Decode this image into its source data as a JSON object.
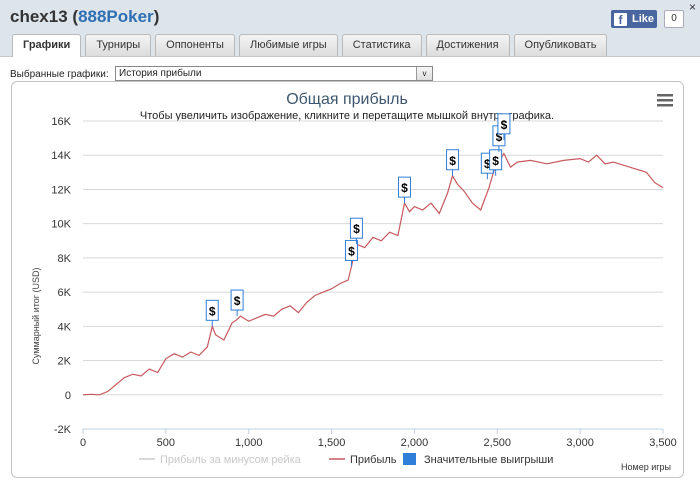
{
  "header": {
    "title_user": "chex13",
    "title_site": "888Poker",
    "close_glyph": "×",
    "like_label": "Like",
    "like_count": "0",
    "fb_icon": "f"
  },
  "tabs": [
    {
      "label": "Графики",
      "active": true
    },
    {
      "label": "Турниры",
      "active": false
    },
    {
      "label": "Оппоненты",
      "active": false
    },
    {
      "label": "Любимые игры",
      "active": false
    },
    {
      "label": "Статистика",
      "active": false
    },
    {
      "label": "Достижения",
      "active": false
    },
    {
      "label": "Опубликовать",
      "active": false
    }
  ],
  "selector": {
    "label": "Выбранные графики:",
    "value": "История прибыли",
    "arrow_glyph": "v"
  },
  "chart_data": {
    "type": "line",
    "title": "Общая прибыль",
    "subtitle": "Чтобы увеличить изображение, кликните и перетащите мышкой внутрь графика.",
    "xlabel": "Номер игры",
    "ylabel": "Суммарный итог (USD)",
    "xlim": [
      0,
      3500
    ],
    "ylim": [
      -2000,
      16000
    ],
    "x_ticks": [
      "0",
      "500",
      "1,000",
      "1,500",
      "2,000",
      "2,500",
      "3,000",
      "3,500"
    ],
    "x_tick_values": [
      0,
      500,
      1000,
      1500,
      2000,
      2500,
      3000,
      3500
    ],
    "y_ticks": [
      "-2K",
      "0",
      "2K",
      "4K",
      "6K",
      "8K",
      "10K",
      "12K",
      "14K",
      "16K"
    ],
    "y_tick_values": [
      -2000,
      0,
      2000,
      4000,
      6000,
      8000,
      10000,
      12000,
      14000,
      16000
    ],
    "grid": true,
    "legend_position": "bottom",
    "menu_icon": "menu-icon",
    "series": [
      {
        "name": "Прибыль за минусом рейка",
        "color": "#cccccc",
        "hidden": true,
        "x": [],
        "y": []
      },
      {
        "name": "Прибыль",
        "color": "#c7595e",
        "hidden": false,
        "x": [
          0,
          50,
          100,
          150,
          200,
          250,
          300,
          350,
          400,
          450,
          500,
          550,
          600,
          650,
          700,
          750,
          780,
          800,
          850,
          900,
          930,
          950,
          1000,
          1050,
          1100,
          1150,
          1200,
          1250,
          1300,
          1350,
          1400,
          1450,
          1500,
          1550,
          1600,
          1620,
          1650,
          1700,
          1750,
          1800,
          1850,
          1900,
          1940,
          1970,
          2000,
          2050,
          2100,
          2150,
          2200,
          2230,
          2260,
          2300,
          2350,
          2400,
          2450,
          2480,
          2510,
          2540,
          2580,
          2620,
          2700,
          2800,
          2900,
          3000,
          3050,
          3100,
          3150,
          3200,
          3300,
          3400,
          3450,
          3500
        ],
        "y": [
          0,
          30,
          0,
          200,
          600,
          1000,
          1200,
          1100,
          1500,
          1300,
          2100,
          2400,
          2200,
          2500,
          2300,
          2800,
          4000,
          3500,
          3200,
          4200,
          4400,
          4600,
          4300,
          4500,
          4700,
          4600,
          5000,
          5200,
          4800,
          5400,
          5800,
          6000,
          6200,
          6500,
          6700,
          7500,
          8800,
          8600,
          9200,
          9000,
          9500,
          9300,
          11200,
          10700,
          11000,
          10800,
          11200,
          10600,
          11800,
          12800,
          12300,
          11900,
          11200,
          10800,
          12100,
          13100,
          13600,
          14100,
          13300,
          13600,
          13700,
          13500,
          13700,
          13800,
          13600,
          14000,
          13500,
          13600,
          13300,
          13000,
          12400,
          12100
        ]
      },
      {
        "name": "Значительные выигрыши",
        "color": "#2f7ed8",
        "hidden": false,
        "x": [
          780,
          930,
          1620,
          1650,
          1940,
          2230,
          2440,
          2490,
          2510,
          2540
        ],
        "y": [
          4000,
          4600,
          7500,
          8800,
          11200,
          12800,
          12600,
          12800,
          14200,
          14900
        ]
      }
    ]
  }
}
